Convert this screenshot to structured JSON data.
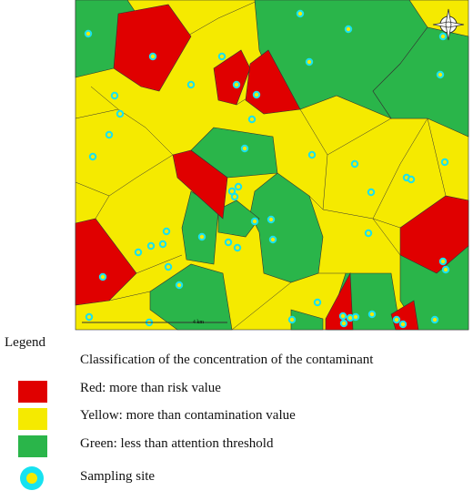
{
  "map": {
    "scale_label": "4 km"
  },
  "legend": {
    "title": "Legend",
    "heading": "Classification of the concentration of the contaminant",
    "items": [
      {
        "label": "Red: more than risk value"
      },
      {
        "label": "Yellow: more than contamination value"
      },
      {
        "label": "Green: less than attention threshold"
      },
      {
        "label": "Sampling site"
      }
    ]
  }
}
